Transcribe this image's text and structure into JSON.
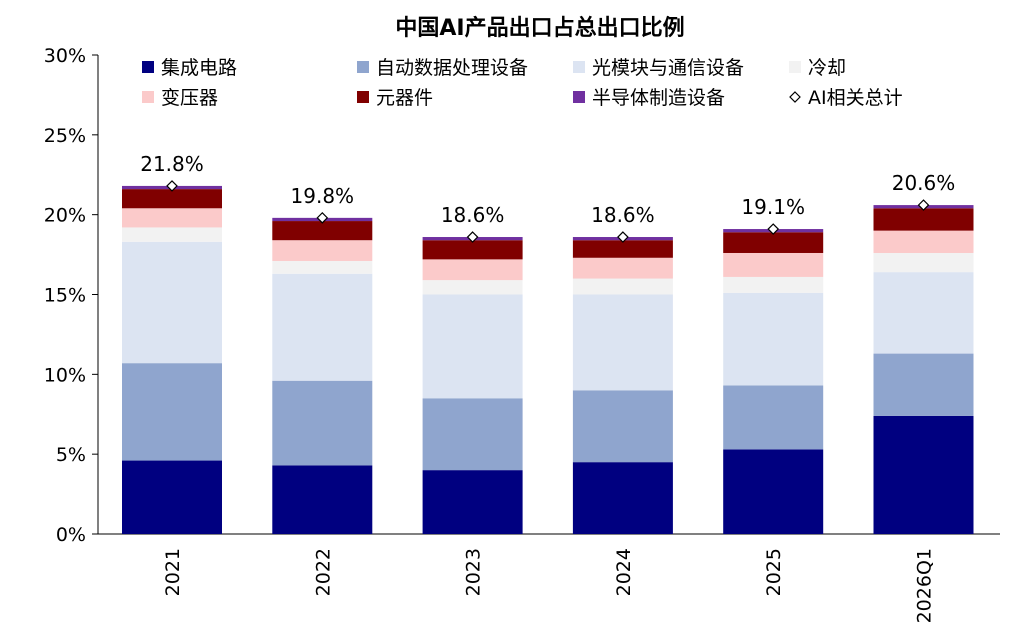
{
  "chart_data": {
    "type": "bar",
    "stacked": true,
    "title": "中国AI产品出口占总出口比例",
    "xlabel": "",
    "ylabel": "",
    "ylim": [
      0,
      30
    ],
    "yticks": [
      "0%",
      "5%",
      "10%",
      "15%",
      "20%",
      "25%",
      "30%"
    ],
    "categories": [
      "2021",
      "2022",
      "2023",
      "2024",
      "2025",
      "2026Q1"
    ],
    "series": [
      {
        "name": "集成电路",
        "color": "#000080",
        "values": [
          4.6,
          4.3,
          4.0,
          4.5,
          5.3,
          7.4
        ]
      },
      {
        "name": "自动数据处理设备",
        "color": "#8FA5CE",
        "values": [
          6.1,
          5.3,
          4.5,
          4.5,
          4.0,
          3.9
        ]
      },
      {
        "name": "光模块与通信设备",
        "color": "#DCE4F2",
        "values": [
          7.6,
          6.7,
          6.5,
          6.0,
          5.8,
          5.1
        ]
      },
      {
        "name": "冷却",
        "color": "#F2F2F2",
        "values": [
          0.9,
          0.8,
          0.9,
          1.0,
          1.0,
          1.2
        ]
      },
      {
        "name": "变压器",
        "color": "#FBCACA",
        "values": [
          1.2,
          1.3,
          1.3,
          1.3,
          1.5,
          1.4
        ]
      },
      {
        "name": "元器件",
        "color": "#800000",
        "values": [
          1.2,
          1.2,
          1.2,
          1.1,
          1.3,
          1.4
        ]
      },
      {
        "name": "半导体制造设备",
        "color": "#7030A0",
        "values": [
          0.2,
          0.2,
          0.2,
          0.2,
          0.2,
          0.2
        ]
      }
    ],
    "line_series": {
      "name": "AI相关总计",
      "marker": "diamond",
      "values": [
        21.8,
        19.8,
        18.6,
        18.6,
        19.1,
        20.6
      ]
    },
    "total_labels": [
      "21.8%",
      "19.8%",
      "18.6%",
      "18.6%",
      "19.1%",
      "20.6%"
    ],
    "legend_position": "top",
    "grid": false
  }
}
